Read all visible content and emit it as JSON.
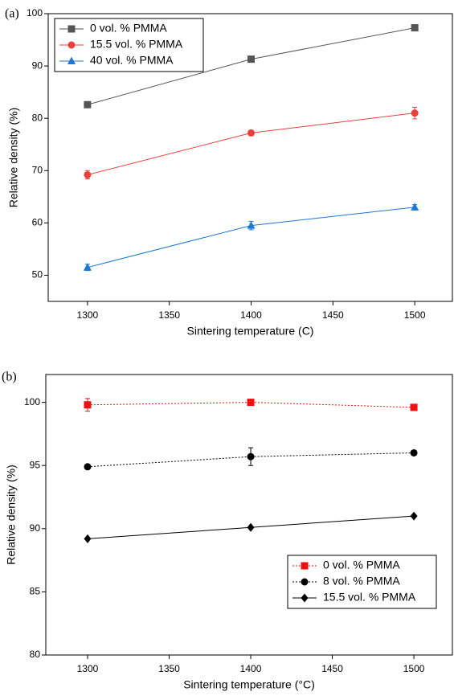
{
  "chart_data": [
    {
      "type": "line",
      "panel": "(a)",
      "xlabel": "Sintering temperature (C)",
      "ylabel": "Relative density (%)",
      "x": [
        1300,
        1400,
        1500
      ],
      "xlim": [
        1276,
        1523
      ],
      "xticks": [
        1300,
        1350,
        1400,
        1450,
        1500
      ],
      "ylim": [
        45,
        100
      ],
      "yticks": [
        50,
        60,
        70,
        80,
        90,
        100
      ],
      "legend": "top-left",
      "series": [
        {
          "name": "0 vol. % PMMA",
          "color": "#555555",
          "marker": "square",
          "dash": "solid",
          "values": [
            82.6,
            91.3,
            97.3
          ]
        },
        {
          "name": "15.5 vol. % PMMA",
          "color": "#e8413c",
          "marker": "circle",
          "dash": "solid",
          "values": [
            69.2,
            77.2,
            81.0
          ],
          "errors": [
            0.8,
            0.5,
            1.1
          ]
        },
        {
          "name": "40 vol. % PMMA",
          "color": "#1f77d4",
          "marker": "triangle",
          "dash": "solid",
          "values": [
            51.5,
            59.5,
            63.0
          ],
          "errors": [
            0.6,
            0.8,
            0.5
          ]
        }
      ]
    },
    {
      "type": "line",
      "panel": "(b)",
      "xlabel": "Sintering temperature (°C)",
      "ylabel": "Relative density (%)",
      "x": [
        1300,
        1400,
        1500
      ],
      "xlim": [
        1274.4,
        1523.6
      ],
      "xticks": [
        1300,
        1350,
        1400,
        1450,
        1500
      ],
      "ylim": [
        80,
        102.2
      ],
      "yticks": [
        80,
        85,
        90,
        95,
        100
      ],
      "legend": "bottom-right",
      "series": [
        {
          "name": "0 vol. % PMMA",
          "color": "#ee1111",
          "marker": "square",
          "dash": "dotted",
          "values": [
            99.8,
            100.0,
            99.6
          ],
          "errors": [
            0.5,
            0,
            0
          ]
        },
        {
          "name": "8 vol. % PMMA",
          "color": "#000000",
          "marker": "circle",
          "dash": "dotted",
          "values": [
            94.9,
            95.7,
            96.0
          ],
          "errors": [
            0,
            0.7,
            0
          ]
        },
        {
          "name": "15.5 vol. % PMMA",
          "color": "#000000",
          "marker": "diamond",
          "dash": "solid",
          "values": [
            89.2,
            90.1,
            91.0
          ]
        }
      ]
    }
  ]
}
